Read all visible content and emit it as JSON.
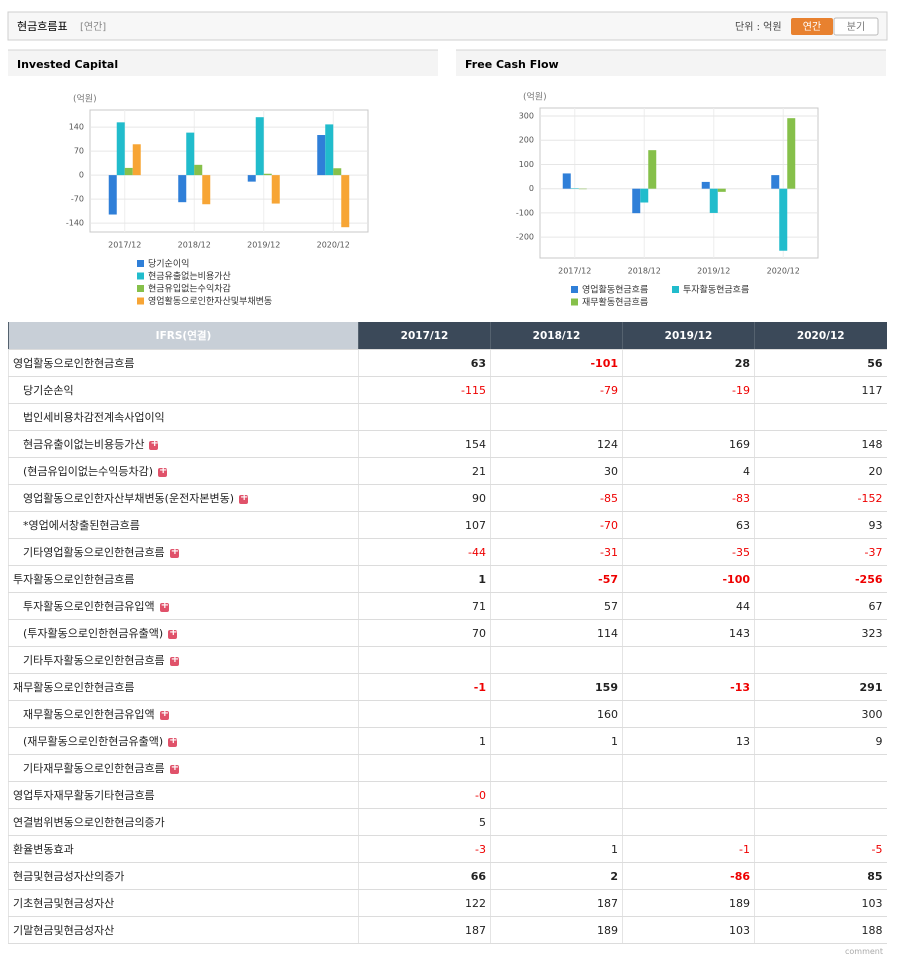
{
  "header": {
    "title": "현금흐름표",
    "subtitle": "[연간]",
    "unit": "단위 : 억원",
    "tabs": [
      "연간",
      "분기"
    ]
  },
  "chart_data": [
    {
      "type": "bar",
      "title": "Invested Capital",
      "unit": "(억원)",
      "categories": [
        "2017/12",
        "2018/12",
        "2019/12",
        "2020/12"
      ],
      "series": [
        {
          "name": "당기순이익",
          "color": "#2f7fd8",
          "values": [
            -115,
            -79,
            -19,
            117
          ]
        },
        {
          "name": "현금유출없는비용가산",
          "color": "#21bccc",
          "values": [
            154,
            124,
            169,
            148
          ]
        },
        {
          "name": "현금유입없는수익차감",
          "color": "#86c04a",
          "values": [
            21,
            30,
            4,
            20
          ]
        },
        {
          "name": "영업활동으로인한자산및부채변동",
          "color": "#f7a535",
          "values": [
            90,
            -85,
            -83,
            -152
          ]
        }
      ],
      "ylim": [
        -166,
        190
      ],
      "yticks": [
        140,
        70,
        0,
        -70,
        -140
      ],
      "grid": true
    },
    {
      "type": "bar",
      "title": "Free Cash Flow",
      "unit": "(억원)",
      "categories": [
        "2017/12",
        "2018/12",
        "2019/12",
        "2020/12"
      ],
      "series": [
        {
          "name": "영업활동현금흐름",
          "color": "#2f7fd8",
          "values": [
            63,
            -101,
            28,
            56
          ]
        },
        {
          "name": "투자활동현금흐름",
          "color": "#21bccc",
          "values": [
            1,
            -57,
            -100,
            -256
          ]
        },
        {
          "name": "재무활동현금흐름",
          "color": "#86c04a",
          "values": [
            -1,
            159,
            -13,
            291
          ]
        }
      ],
      "ylim": [
        -286,
        333
      ],
      "yticks": [
        300,
        200,
        100,
        0,
        -100,
        -200
      ],
      "grid": true
    }
  ],
  "table": {
    "columns": [
      "IFRS(연결)",
      "2017/12",
      "2018/12",
      "2019/12",
      "2020/12"
    ],
    "rows": [
      {
        "label": "영업활동으로인한현금흐름",
        "values": [
          "63",
          "-101",
          "28",
          "56"
        ],
        "indent": false,
        "bold": true,
        "expand": false
      },
      {
        "label": "당기순손익",
        "values": [
          "-115",
          "-79",
          "-19",
          "117"
        ],
        "indent": true,
        "bold": false,
        "expand": false
      },
      {
        "label": "법인세비용차감전계속사업이익",
        "values": [
          null,
          null,
          null,
          null
        ],
        "indent": true,
        "bold": false,
        "expand": false
      },
      {
        "label": "현금유출이없는비용등가산",
        "values": [
          "154",
          "124",
          "169",
          "148"
        ],
        "indent": true,
        "bold": false,
        "expand": true
      },
      {
        "label": "(현금유입이없는수익등차감)",
        "values": [
          "21",
          "30",
          "4",
          "20"
        ],
        "indent": true,
        "bold": false,
        "expand": true
      },
      {
        "label": "영업활동으로인한자산부채변동(운전자본변동)",
        "values": [
          "90",
          "-85",
          "-83",
          "-152"
        ],
        "indent": true,
        "bold": false,
        "expand": true
      },
      {
        "label": "*영업에서창출된현금흐름",
        "values": [
          "107",
          "-70",
          "63",
          "93"
        ],
        "indent": true,
        "bold": false,
        "expand": false
      },
      {
        "label": "기타영업활동으로인한현금흐름",
        "values": [
          "-44",
          "-31",
          "-35",
          "-37"
        ],
        "indent": true,
        "bold": false,
        "expand": true
      },
      {
        "label": "투자활동으로인한현금흐름",
        "values": [
          "1",
          "-57",
          "-100",
          "-256"
        ],
        "indent": false,
        "bold": true,
        "expand": false
      },
      {
        "label": "투자활동으로인한현금유입액",
        "values": [
          "71",
          "57",
          "44",
          "67"
        ],
        "indent": true,
        "bold": false,
        "expand": true
      },
      {
        "label": "(투자활동으로인한현금유출액)",
        "values": [
          "70",
          "114",
          "143",
          "323"
        ],
        "indent": true,
        "bold": false,
        "expand": true
      },
      {
        "label": "기타투자활동으로인한현금흐름",
        "values": [
          null,
          null,
          null,
          null
        ],
        "indent": true,
        "bold": false,
        "expand": true
      },
      {
        "label": "재무활동으로인한현금흐름",
        "values": [
          "-1",
          "159",
          "-13",
          "291"
        ],
        "indent": false,
        "bold": true,
        "expand": false
      },
      {
        "label": "재무활동으로인한현금유입액",
        "values": [
          null,
          "160",
          null,
          "300"
        ],
        "indent": true,
        "bold": false,
        "expand": true
      },
      {
        "label": "(재무활동으로인한현금유출액)",
        "values": [
          "1",
          "1",
          "13",
          "9"
        ],
        "indent": true,
        "bold": false,
        "expand": true
      },
      {
        "label": "기타재무활동으로인한현금흐름",
        "values": [
          null,
          null,
          null,
          null
        ],
        "indent": true,
        "bold": false,
        "expand": true
      },
      {
        "label": "영업투자재무활동기타현금흐름",
        "values": [
          "-0",
          null,
          null,
          null
        ],
        "indent": false,
        "bold": false,
        "expand": false
      },
      {
        "label": "연결범위변동으로인한현금의증가",
        "values": [
          "5",
          null,
          null,
          null
        ],
        "indent": false,
        "bold": false,
        "expand": false
      },
      {
        "label": "환율변동효과",
        "values": [
          "-3",
          "1",
          "-1",
          "-5"
        ],
        "indent": false,
        "bold": false,
        "expand": false
      },
      {
        "label": "현금및현금성자산의증가",
        "values": [
          "66",
          "2",
          "-86",
          "85"
        ],
        "indent": false,
        "bold": true,
        "expand": false
      },
      {
        "label": "기초현금및현금성자산",
        "values": [
          "122",
          "187",
          "189",
          "103"
        ],
        "indent": false,
        "bold": false,
        "expand": false
      },
      {
        "label": "기말현금및현금성자산",
        "values": [
          "187",
          "189",
          "103",
          "188"
        ],
        "indent": false,
        "bold": false,
        "expand": false
      }
    ]
  },
  "footer": "comment"
}
